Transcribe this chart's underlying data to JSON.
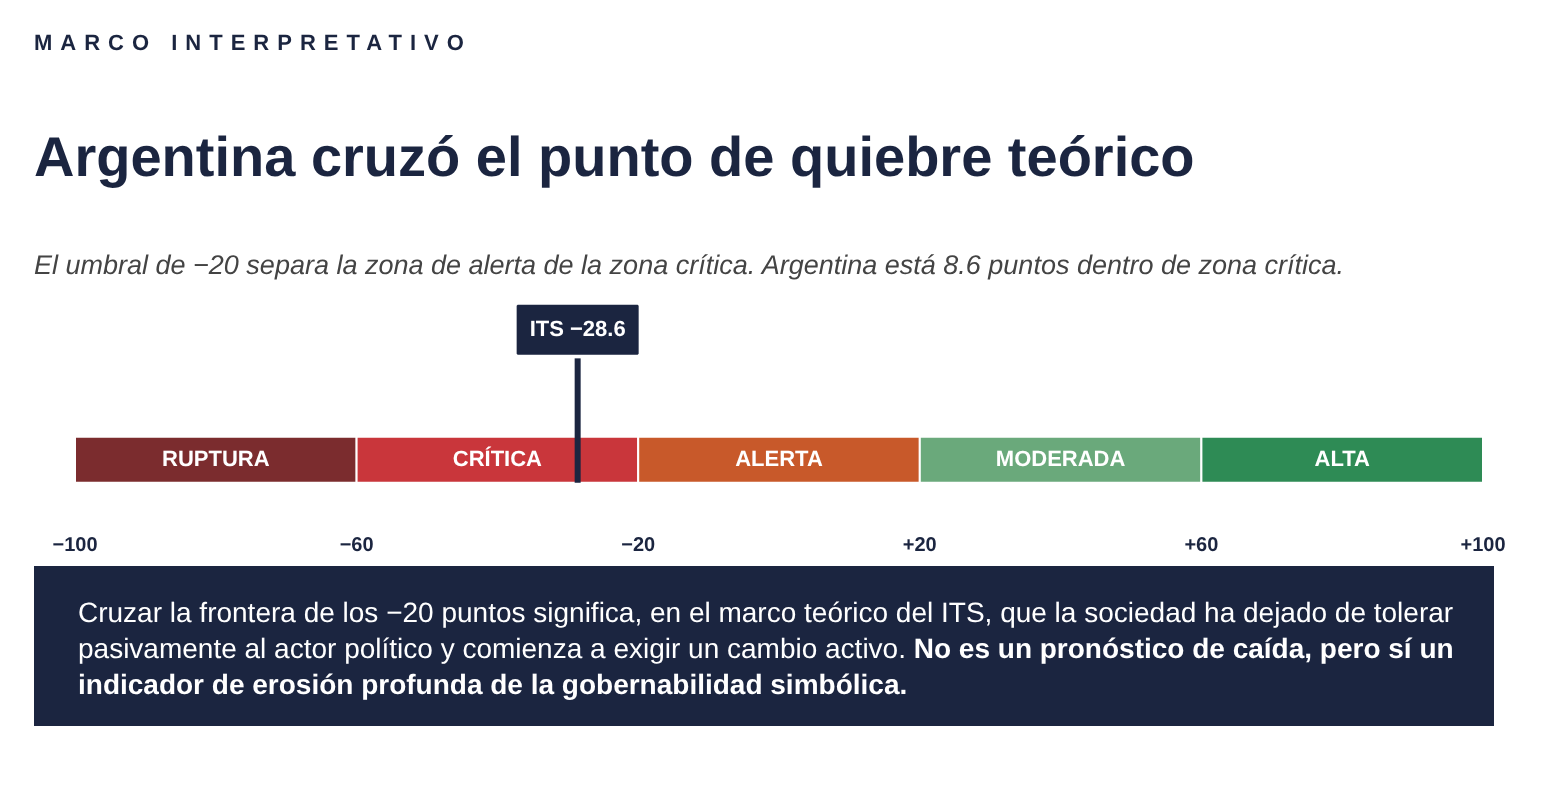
{
  "chart_data": {
    "type": "bar",
    "orientation": "horizontal",
    "title": "Argentina cruzó el punto de quiebre teórico",
    "subtitle": "El umbral de −20 separa la zona de alerta de la zona crítica. Argentina está 8.6 puntos dentro de zona crítica.",
    "annotations": [
      "MARCO INTERPRETATIVO",
      "Cruzar la frontera de los −20 puntos significa, en el marco teórico del ITS, que la sociedad ha dejado de tolerar pasivamente al actor político y comienza a exigir un cambio activo.",
      "No es un pronóstico de caída, pero sí un indicador de erosión profunda de la gobernabilidad simbólica."
    ],
    "categories": [
      null
    ],
    "xlim": [
      -100,
      100
    ],
    "xticks": [
      {
        "value": -100,
        "label": "−100"
      },
      {
        "value": -60,
        "label": "−60"
      },
      {
        "value": -20,
        "label": "−20"
      },
      {
        "value": 20,
        "label": "+20"
      },
      {
        "value": 60,
        "label": "+60"
      },
      {
        "value": 100,
        "label": "+100"
      }
    ],
    "series": [
      {
        "name": "RUPTURA",
        "color": "#7b2c2e",
        "base": [
          -100
        ],
        "values": [
          40
        ]
      },
      {
        "name": "CRÍTICA",
        "color": "#c9363b",
        "base": [
          -60
        ],
        "values": [
          40
        ]
      },
      {
        "name": "ALERTA",
        "color": "#c8592a",
        "base": [
          -20
        ],
        "values": [
          40
        ]
      },
      {
        "name": "MODERADA",
        "color": "#6aa97b",
        "base": [
          20
        ],
        "values": [
          40
        ]
      },
      {
        "name": "ALTA",
        "color": "#2e8b55",
        "base": [
          60
        ],
        "values": [
          40
        ]
      }
    ],
    "ref_lines": [
      {
        "axis": "x",
        "value": -28.6,
        "label": "ITS −28.6",
        "color": "#1b2540"
      }
    ]
  }
}
